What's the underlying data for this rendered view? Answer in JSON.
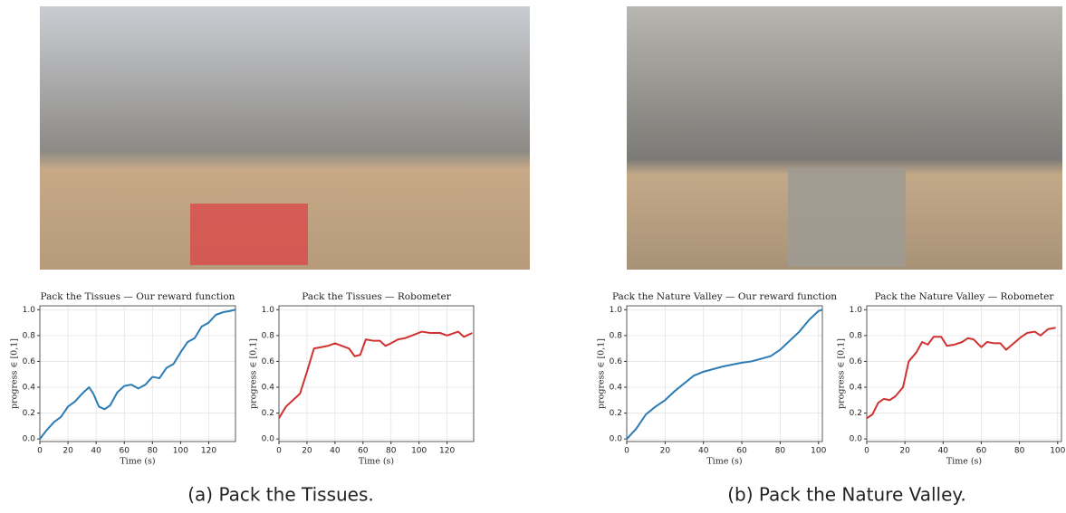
{
  "chart_data": [
    {
      "type": "line",
      "title": "Pack the Tissues  —  Our reward function",
      "xlabel": "Time (s)",
      "ylabel": "progress ∈ [0,1]",
      "x": [
        0,
        5,
        10,
        15,
        20,
        25,
        30,
        35,
        38,
        42,
        46,
        50,
        55,
        60,
        65,
        70,
        75,
        80,
        85,
        90,
        95,
        100,
        105,
        110,
        115,
        120,
        125,
        130,
        135,
        139
      ],
      "series": [
        {
          "color": "#2b7bb4",
          "values": [
            0.0,
            0.07,
            0.13,
            0.17,
            0.25,
            0.29,
            0.35,
            0.4,
            0.35,
            0.25,
            0.23,
            0.26,
            0.36,
            0.41,
            0.42,
            0.39,
            0.42,
            0.48,
            0.47,
            0.55,
            0.58,
            0.67,
            0.75,
            0.78,
            0.87,
            0.9,
            0.96,
            0.98,
            0.99,
            1.0
          ]
        }
      ],
      "xlim": [
        0,
        139
      ],
      "xticks": [
        0,
        20,
        40,
        60,
        80,
        100,
        120
      ],
      "ylim": [
        -0.02,
        1.03
      ],
      "yticks": [
        {
          "value": 0,
          "label": "0.0"
        },
        {
          "value": 0.2,
          "label": "0.2"
        },
        {
          "value": 0.4,
          "label": "0.4"
        },
        {
          "value": 0.6,
          "label": "0.6"
        },
        {
          "value": 0.8,
          "label": "0.8"
        },
        {
          "value": 1,
          "label": "1.0"
        }
      ],
      "grid": true
    },
    {
      "type": "line",
      "title": "Pack the Tissues  —  Robometer",
      "xlabel": "Time (s)",
      "ylabel": "progress ∈ [0,1]",
      "x": [
        0,
        5,
        10,
        15,
        20,
        25,
        30,
        35,
        40,
        45,
        50,
        54,
        58,
        62,
        67,
        72,
        76,
        80,
        85,
        90,
        95,
        102,
        108,
        115,
        120,
        128,
        132,
        138
      ],
      "series": [
        {
          "color": "#d03232",
          "values": [
            0.16,
            0.25,
            0.3,
            0.35,
            0.52,
            0.7,
            0.71,
            0.72,
            0.74,
            0.72,
            0.7,
            0.64,
            0.65,
            0.77,
            0.76,
            0.76,
            0.72,
            0.74,
            0.77,
            0.78,
            0.8,
            0.83,
            0.82,
            0.82,
            0.8,
            0.83,
            0.79,
            0.82
          ]
        }
      ],
      "xlim": [
        0,
        139
      ],
      "xticks": [
        0,
        20,
        40,
        60,
        80,
        100,
        120
      ],
      "ylim": [
        -0.02,
        1.03
      ],
      "yticks": [
        {
          "value": 0,
          "label": "0.0"
        },
        {
          "value": 0.2,
          "label": "0.2"
        },
        {
          "value": 0.4,
          "label": "0.4"
        },
        {
          "value": 0.6,
          "label": "0.6"
        },
        {
          "value": 0.8,
          "label": "0.8"
        },
        {
          "value": 1,
          "label": "1.0"
        }
      ],
      "grid": true
    },
    {
      "type": "line",
      "title": "Pack the Nature Valley  —  Our reward function",
      "xlabel": "Time (s)",
      "ylabel": "progress ∈ [0,1]",
      "x": [
        0,
        5,
        10,
        15,
        20,
        25,
        30,
        35,
        40,
        45,
        50,
        55,
        60,
        65,
        70,
        75,
        80,
        85,
        90,
        95,
        100,
        102
      ],
      "series": [
        {
          "color": "#2b7bb4",
          "values": [
            0.0,
            0.08,
            0.19,
            0.25,
            0.3,
            0.37,
            0.43,
            0.49,
            0.52,
            0.54,
            0.56,
            0.575,
            0.59,
            0.6,
            0.62,
            0.64,
            0.69,
            0.76,
            0.83,
            0.92,
            0.99,
            1.0
          ]
        }
      ],
      "xlim": [
        0,
        102
      ],
      "xticks": [
        0,
        20,
        40,
        60,
        80,
        100
      ],
      "ylim": [
        -0.02,
        1.03
      ],
      "yticks": [
        {
          "value": 0,
          "label": "0.0"
        },
        {
          "value": 0.2,
          "label": "0.2"
        },
        {
          "value": 0.4,
          "label": "0.4"
        },
        {
          "value": 0.6,
          "label": "0.6"
        },
        {
          "value": 0.8,
          "label": "0.8"
        },
        {
          "value": 1,
          "label": "1.0"
        }
      ],
      "grid": true
    },
    {
      "type": "line",
      "title": "Pack the Nature Valley  —  Robometer",
      "xlabel": "Time (s)",
      "ylabel": "progress ∈ [0,1]",
      "x": [
        0,
        3,
        6,
        9,
        12,
        15,
        19,
        22,
        26,
        29,
        32,
        35,
        39,
        42,
        46,
        50,
        53,
        56,
        60,
        63,
        67,
        70,
        73,
        77,
        81,
        84,
        88,
        91,
        95,
        99
      ],
      "series": [
        {
          "color": "#d03232",
          "values": [
            0.16,
            0.19,
            0.28,
            0.31,
            0.3,
            0.33,
            0.4,
            0.6,
            0.67,
            0.75,
            0.73,
            0.79,
            0.79,
            0.72,
            0.73,
            0.75,
            0.78,
            0.77,
            0.71,
            0.75,
            0.74,
            0.74,
            0.69,
            0.74,
            0.79,
            0.82,
            0.83,
            0.8,
            0.85,
            0.86
          ]
        }
      ],
      "xlim": [
        0,
        102
      ],
      "xticks": [
        0,
        20,
        40,
        60,
        80,
        100
      ],
      "ylim": [
        -0.02,
        1.03
      ],
      "yticks": [
        {
          "value": 0,
          "label": "0.0"
        },
        {
          "value": 0.2,
          "label": "0.2"
        },
        {
          "value": 0.4,
          "label": "0.4"
        },
        {
          "value": 0.6,
          "label": "0.6"
        },
        {
          "value": 0.8,
          "label": "0.8"
        },
        {
          "value": 1,
          "label": "1.0"
        }
      ],
      "grid": true
    }
  ],
  "captions": [
    "(a) Pack the Tissues.",
    "(b) Pack the Nature Valley."
  ]
}
